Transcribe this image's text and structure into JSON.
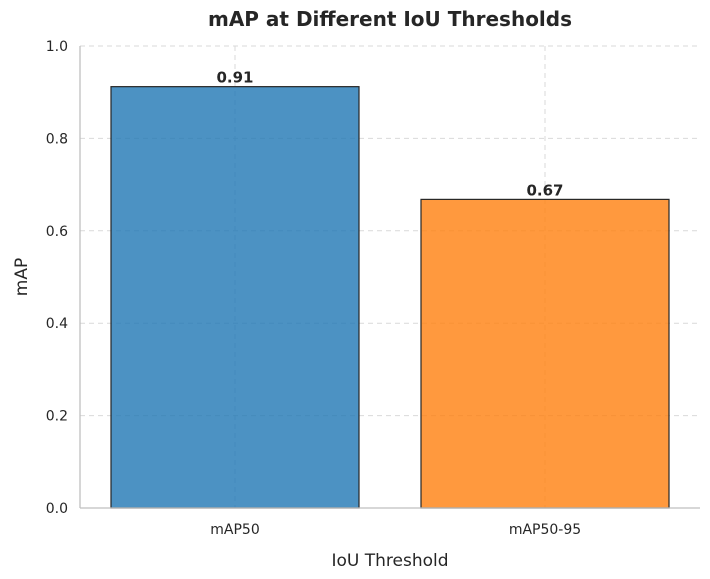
{
  "chart_data": {
    "type": "bar",
    "title": "mAP at Different IoU Thresholds",
    "xlabel": "IoU Threshold",
    "ylabel": "mAP",
    "categories": [
      "mAP50",
      "mAP50-95"
    ],
    "values": [
      0.912,
      0.668
    ],
    "data_labels": [
      "0.91",
      "0.67"
    ],
    "colors": [
      "#1f77b4",
      "#ff7f0e"
    ],
    "ylim": [
      0,
      1.0
    ],
    "yticks": [
      "0.0",
      "0.2",
      "0.4",
      "0.6",
      "0.8",
      "1.0"
    ],
    "grid": true
  }
}
